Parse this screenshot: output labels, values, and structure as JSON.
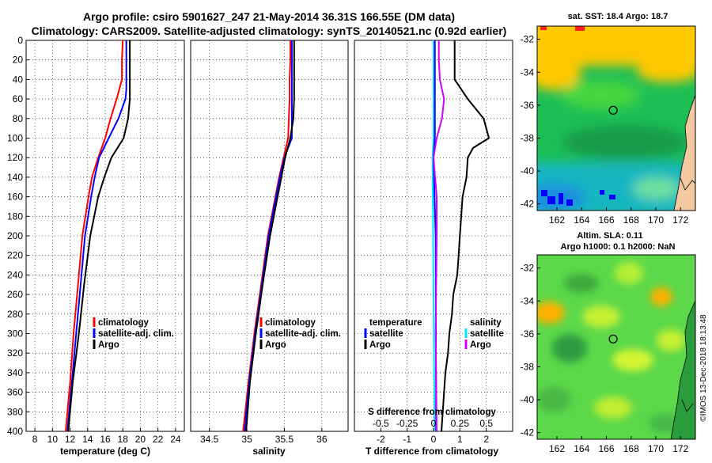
{
  "header": {
    "line1": "Argo profile: csiro 5901627_247 21-May-2014 36.31S 166.55E (DM data)",
    "line2": "Climatology: CARS2009. Satellite-adjusted climatology: synTS_20140521.nc (0.92d earlier)"
  },
  "colors": {
    "climatology": "#ff0000",
    "satellite_adj": "#0000ff",
    "argo": "#000000",
    "s_satellite": "#00e5ff",
    "s_argo": "#d000ff"
  },
  "legends": {
    "temp_panel": [
      "climatology",
      "satellite-adj. clim.",
      "Argo"
    ],
    "sal_panel": [
      "climatology",
      "satellite-adj. clim.",
      "Argo"
    ],
    "diff_temperature_title": "temperature",
    "diff_salinity_title": "salinity",
    "diff_temperature_items": [
      "satellite",
      "Argo"
    ],
    "diff_salinity_items": [
      "satellite",
      "Argo"
    ]
  },
  "maps": {
    "sst_title": "sat. SST: 18.4 Argo: 18.7",
    "sla_title_1": "Altim. SLA: 0.11",
    "sla_title_2": "Argo h1000: 0.1 h2000: NaN",
    "lon_ticks": [
      "162",
      "164",
      "166",
      "168",
      "170",
      "172"
    ],
    "lat_ticks": [
      "-32",
      "-34",
      "-36",
      "-38",
      "-40",
      "-42"
    ],
    "profile_position": {
      "lon": 166.55,
      "lat": -36.31
    }
  },
  "watermark": "©IMOS 13-Dec-2018 18:13:48",
  "chart_data": [
    {
      "type": "line",
      "name": "temperature profile",
      "xlabel": "temperature (deg C)",
      "ylabel": "",
      "xlim": [
        7,
        25
      ],
      "ylim": [
        400,
        0
      ],
      "xticks": [
        "8",
        "10",
        "12",
        "14",
        "16",
        "18",
        "20",
        "22",
        "24"
      ],
      "yticks": [
        "0",
        "20",
        "40",
        "60",
        "80",
        "100",
        "120",
        "140",
        "160",
        "180",
        "200",
        "220",
        "240",
        "260",
        "280",
        "300",
        "320",
        "340",
        "360",
        "380",
        "400"
      ],
      "depth": [
        0,
        20,
        40,
        50,
        60,
        80,
        100,
        120,
        140,
        160,
        200,
        250,
        300,
        350,
        400
      ],
      "series": [
        {
          "name": "climatology",
          "values": [
            18.0,
            17.9,
            17.9,
            17.6,
            17.3,
            16.6,
            16.0,
            15.2,
            14.5,
            14.1,
            13.4,
            12.9,
            12.4,
            12.0,
            11.5
          ]
        },
        {
          "name": "satellite-adj. clim.",
          "values": [
            18.4,
            18.4,
            18.4,
            18.4,
            18.3,
            17.5,
            16.4,
            15.3,
            14.8,
            14.4,
            13.7,
            13.2,
            12.7,
            12.2,
            11.7
          ]
        },
        {
          "name": "Argo",
          "values": [
            18.8,
            18.8,
            18.8,
            18.8,
            18.8,
            18.6,
            18.1,
            16.7,
            15.9,
            15.2,
            14.3,
            13.6,
            13.0,
            12.3,
            11.8
          ]
        }
      ]
    },
    {
      "type": "line",
      "name": "salinity profile",
      "xlabel": "salinity",
      "ylabel": "",
      "xlim": [
        34.25,
        36.35
      ],
      "ylim": [
        400,
        0
      ],
      "xticks": [
        "34.5",
        "35",
        "35.5",
        "36"
      ],
      "depth": [
        0,
        20,
        40,
        60,
        80,
        100,
        120,
        140,
        160,
        200,
        250,
        300,
        350,
        400
      ],
      "series": [
        {
          "name": "climatology",
          "values": [
            35.58,
            35.58,
            35.57,
            35.57,
            35.56,
            35.55,
            35.49,
            35.43,
            35.38,
            35.28,
            35.19,
            35.1,
            35.02,
            34.95
          ]
        },
        {
          "name": "satellite-adj. clim.",
          "values": [
            35.6,
            35.6,
            35.6,
            35.6,
            35.6,
            35.6,
            35.5,
            35.44,
            35.39,
            35.29,
            35.2,
            35.11,
            35.03,
            34.97
          ]
        },
        {
          "name": "Argo",
          "values": [
            35.63,
            35.63,
            35.63,
            35.63,
            35.62,
            35.58,
            35.51,
            35.46,
            35.41,
            35.31,
            35.21,
            35.12,
            35.04,
            34.99
          ]
        }
      ]
    },
    {
      "type": "line",
      "name": "difference from climatology",
      "xlabel": "T difference from climatology",
      "x2label": "S difference from climatology",
      "xlim": [
        -3,
        3
      ],
      "ylim": [
        400,
        0
      ],
      "xticks": [
        "-2",
        "-1",
        "0",
        "1",
        "2"
      ],
      "x2ticks": [
        "-0.5",
        "-0.25",
        "0",
        "0.25",
        "0.5"
      ],
      "depth_T_argo": [
        0,
        20,
        40,
        60,
        80,
        90,
        100,
        110,
        120,
        140,
        160,
        180,
        200,
        220,
        240,
        260,
        280,
        300,
        320,
        340,
        360,
        380,
        400
      ],
      "T_argo": [
        0.8,
        0.8,
        0.8,
        1.3,
        1.9,
        2.0,
        2.1,
        1.5,
        1.3,
        1.25,
        1.1,
        1.05,
        1.0,
        0.95,
        0.9,
        0.75,
        0.7,
        0.6,
        0.55,
        0.45,
        0.4,
        0.35,
        0.3
      ],
      "depth_T_sat": [
        0,
        100,
        120,
        200,
        400
      ],
      "T_sat": [
        0.05,
        0.05,
        0.0,
        0.08,
        0.1
      ],
      "depth_S_argo": [
        0,
        20,
        40,
        60,
        80,
        100,
        120,
        160,
        200,
        300,
        400
      ],
      "S_argo": [
        0.05,
        0.05,
        0.06,
        0.1,
        0.08,
        0.03,
        0.0,
        0.03,
        0.03,
        0.02,
        0.03
      ],
      "depth_S_sat": [
        0,
        100,
        120,
        400
      ],
      "S_sat": [
        0.0,
        0.0,
        -0.01,
        0.01
      ]
    }
  ]
}
